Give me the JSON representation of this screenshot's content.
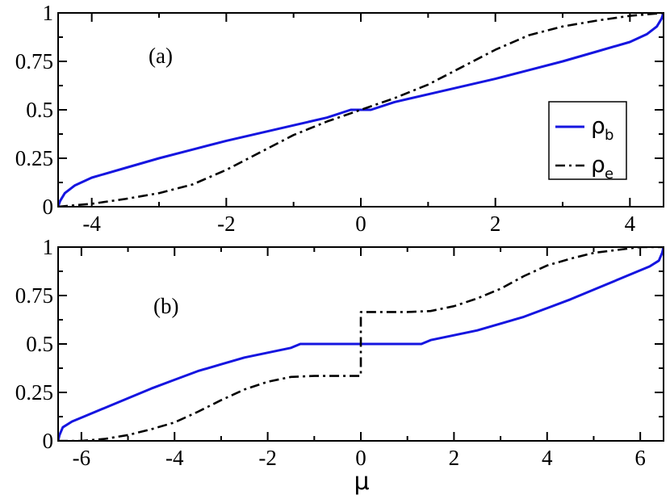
{
  "chart_data": [
    {
      "type": "line",
      "panel_label": "(a)",
      "xlabel": "",
      "ylabel": "",
      "xlim": [
        -4.5,
        4.5
      ],
      "ylim": [
        0,
        1
      ],
      "xticks": [
        -4,
        -2,
        0,
        2,
        4
      ],
      "xtick_labels": [
        "-4",
        "-2",
        "0",
        "2",
        "4"
      ],
      "yticks": [
        0,
        0.25,
        0.5,
        0.75,
        1
      ],
      "ytick_labels": [
        "0",
        "0.25",
        "0.5",
        "0.75",
        "1"
      ],
      "grid": false,
      "legend": {
        "position": "right",
        "entries": [
          {
            "symbol": "ρ",
            "subscript": "b"
          },
          {
            "symbol": "ρ",
            "subscript": "e"
          }
        ]
      },
      "series": [
        {
          "key": "rho_b",
          "color": "#1515e0",
          "style": "solid",
          "x": [
            -4.5,
            -4.47,
            -4.4,
            -4.25,
            -4.0,
            -3.5,
            -3.0,
            -2.5,
            -2.0,
            -1.5,
            -1.0,
            -0.5,
            -0.15,
            0.15,
            0.5,
            1.0,
            1.5,
            2.0,
            2.5,
            3.0,
            3.5,
            4.0,
            4.25,
            4.4,
            4.47,
            4.5
          ],
          "y": [
            0.0,
            0.03,
            0.07,
            0.11,
            0.15,
            0.2,
            0.25,
            0.295,
            0.34,
            0.38,
            0.42,
            0.46,
            0.5,
            0.5,
            0.54,
            0.58,
            0.62,
            0.66,
            0.705,
            0.75,
            0.8,
            0.85,
            0.89,
            0.93,
            0.97,
            1.0
          ]
        },
        {
          "key": "rho_e",
          "color": "#000000",
          "style": "dashdot",
          "x": [
            -4.5,
            -4.0,
            -3.5,
            -3.0,
            -2.5,
            -2.0,
            -1.5,
            -1.0,
            -0.5,
            0.0,
            0.5,
            1.0,
            1.5,
            2.0,
            2.5,
            3.0,
            3.5,
            4.0,
            4.5
          ],
          "y": [
            0.0,
            0.015,
            0.04,
            0.07,
            0.115,
            0.19,
            0.28,
            0.37,
            0.44,
            0.5,
            0.56,
            0.63,
            0.72,
            0.81,
            0.885,
            0.93,
            0.96,
            0.985,
            1.0
          ]
        }
      ]
    },
    {
      "type": "line",
      "panel_label": "(b)",
      "xlabel": "μ",
      "ylabel": "",
      "xlim": [
        -6.5,
        6.5
      ],
      "ylim": [
        0,
        1
      ],
      "xticks": [
        -6,
        -4,
        -2,
        0,
        2,
        4,
        6
      ],
      "xtick_labels": [
        "-6",
        "-4",
        "-2",
        "0",
        "2",
        "4",
        "6"
      ],
      "yticks": [
        0,
        0.25,
        0.5,
        0.75,
        1
      ],
      "ytick_labels": [
        "0",
        "0.25",
        "0.5",
        "0.75",
        "1"
      ],
      "grid": false,
      "series": [
        {
          "key": "rho_b",
          "color": "#1515e0",
          "style": "solid",
          "x": [
            -6.5,
            -6.47,
            -6.4,
            -6.2,
            -6.0,
            -5.5,
            -5.0,
            -4.5,
            -4.0,
            -3.5,
            -3.0,
            -2.5,
            -2.0,
            -1.5,
            -1.3,
            1.3,
            1.5,
            2.0,
            2.5,
            3.0,
            3.5,
            4.0,
            4.5,
            5.0,
            5.5,
            6.0,
            6.2,
            6.4,
            6.47,
            6.5
          ],
          "y": [
            0.0,
            0.03,
            0.07,
            0.1,
            0.12,
            0.17,
            0.22,
            0.27,
            0.315,
            0.36,
            0.395,
            0.43,
            0.455,
            0.48,
            0.5,
            0.5,
            0.52,
            0.545,
            0.57,
            0.605,
            0.64,
            0.685,
            0.73,
            0.78,
            0.83,
            0.88,
            0.9,
            0.93,
            0.97,
            1.0
          ]
        },
        {
          "key": "rho_e",
          "color": "#000000",
          "style": "dashdot",
          "x": [
            -6.5,
            -6.0,
            -5.5,
            -5.0,
            -4.5,
            -4.0,
            -3.5,
            -3.0,
            -2.5,
            -2.0,
            -1.5,
            -1.0,
            -0.5,
            0.0,
            0.0,
            0.5,
            1.0,
            1.5,
            2.0,
            2.5,
            3.0,
            3.5,
            4.0,
            4.5,
            5.0,
            5.5,
            6.0,
            6.5
          ],
          "y": [
            0.0,
            0.0,
            0.01,
            0.03,
            0.06,
            0.095,
            0.15,
            0.21,
            0.265,
            0.305,
            0.33,
            0.335,
            0.335,
            0.335,
            0.665,
            0.665,
            0.665,
            0.67,
            0.695,
            0.735,
            0.785,
            0.85,
            0.905,
            0.94,
            0.97,
            0.985,
            1.0,
            1.0
          ]
        }
      ]
    }
  ]
}
